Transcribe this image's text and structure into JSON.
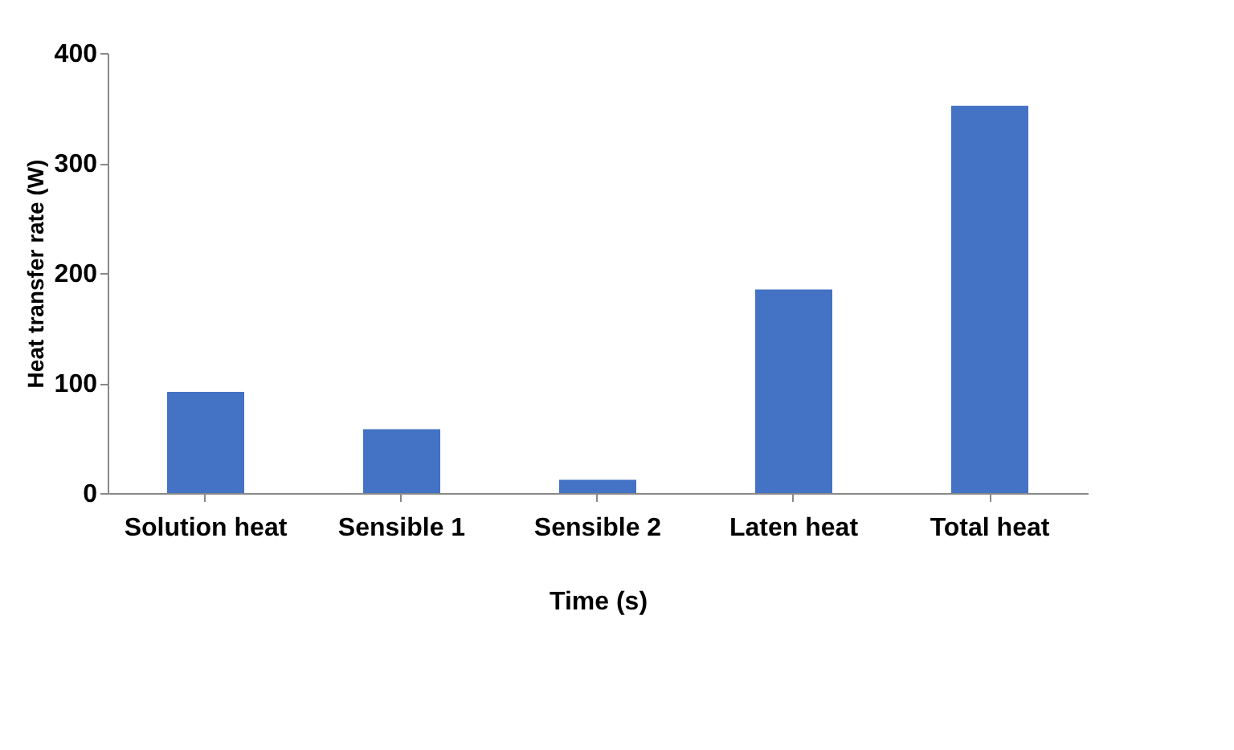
{
  "chart_data": {
    "type": "bar",
    "xlabel": "Time (s)",
    "ylabel": "Heat transfer rate (W)",
    "categories": [
      "Solution heat",
      "Sensible 1",
      "Sensible 2",
      "Laten heat",
      "Total heat"
    ],
    "values": [
      92,
      58,
      12,
      185,
      352
    ],
    "color": "#4472c4",
    "ylim": [
      0,
      400
    ],
    "yticks": [
      0,
      100,
      200,
      300,
      400
    ],
    "grid": false
  }
}
